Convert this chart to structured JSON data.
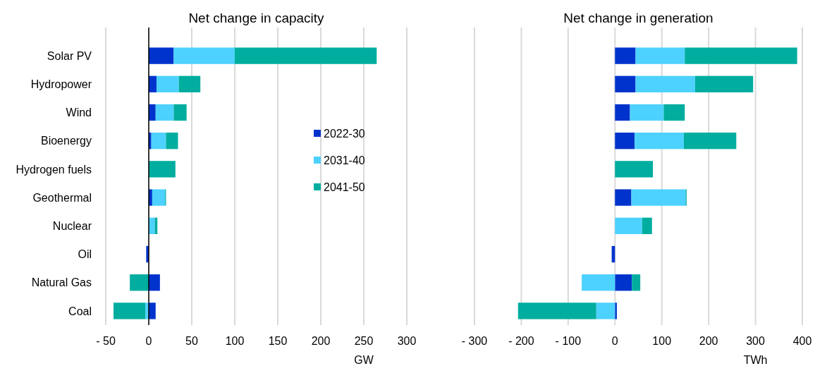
{
  "chart_data": [
    {
      "type": "bar",
      "orientation": "horizontal",
      "stacked": true,
      "title": "Net change in capacity",
      "xlabel": "GW",
      "categories": [
        "Solar PV",
        "Hydropower",
        "Wind",
        "Bioenergy",
        "Hydrogen fuels",
        "Geothermal",
        "Nuclear",
        "Oil",
        "Natural Gas",
        "Coal"
      ],
      "series": [
        {
          "name": "2022-30",
          "color": "#0033cc",
          "values": [
            29,
            9,
            8,
            3,
            0,
            4,
            0,
            -3,
            13,
            8
          ]
        },
        {
          "name": "2031-40",
          "color": "#4dd2ff",
          "values": [
            71,
            26,
            21,
            17,
            0,
            15,
            7,
            0,
            0,
            -4
          ]
        },
        {
          "name": "2041-50",
          "color": "#00ad9f",
          "values": [
            165,
            25,
            15,
            14,
            31,
            1,
            3,
            0,
            -22,
            -37
          ]
        }
      ],
      "xlim": [
        -50,
        300
      ],
      "xticks": [
        {
          "value": -50,
          "label": "- 50"
        },
        0,
        50,
        100,
        150,
        200,
        250,
        300
      ],
      "grid": "x",
      "legend": "right"
    },
    {
      "type": "bar",
      "orientation": "horizontal",
      "stacked": true,
      "title": "Net change in generation",
      "xlabel": "TWh",
      "categories": [
        null,
        null,
        null,
        null,
        null,
        null,
        null,
        null,
        null,
        null
      ],
      "series": [
        {
          "color": "#0033cc",
          "values": [
            44,
            44,
            32,
            42,
            0,
            35,
            0,
            -7,
            36,
            4
          ]
        },
        {
          "color": "#4dd2ff",
          "values": [
            105,
            127,
            72,
            105,
            0,
            116,
            58,
            0,
            -71,
            -40
          ]
        },
        {
          "color": "#00ad9f",
          "values": [
            240,
            124,
            45,
            112,
            81,
            2,
            21,
            0,
            18,
            -167
          ]
        }
      ],
      "xlim": [
        -300,
        400
      ],
      "xticks": [
        {
          "value": -300,
          "label": "- 300"
        },
        {
          "value": -200,
          "label": "- 200"
        },
        {
          "value": -100,
          "label": "- 100"
        },
        0,
        100,
        200,
        300,
        400
      ],
      "grid": "x",
      "tick_labels": "x"
    }
  ]
}
